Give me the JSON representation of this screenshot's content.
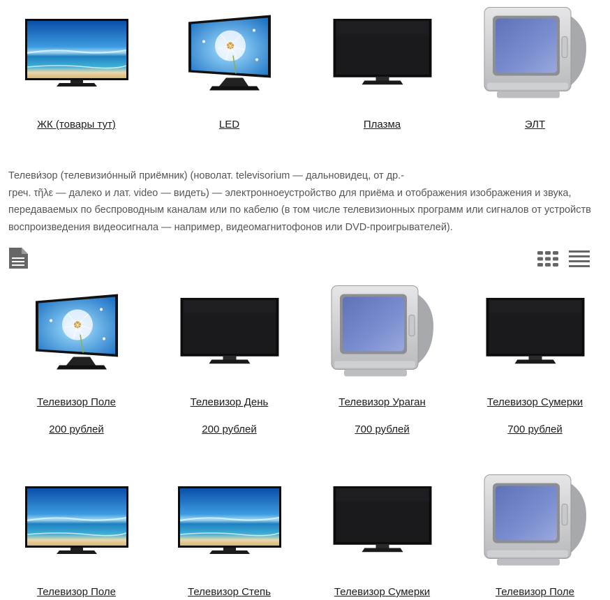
{
  "categories": [
    {
      "label": "ЖК (товары тут)",
      "kind": "beach"
    },
    {
      "label": "LED",
      "kind": "dandelion"
    },
    {
      "label": "Плазма",
      "kind": "black"
    },
    {
      "label": "ЭЛТ",
      "kind": "crt"
    }
  ],
  "description": {
    "lines": [
      "Телеви́зор (телевизио́нный приёмник) (новолат. televisorium — дальновидец, от др.-",
      "греч. τῆλε — далеко и лат. video — видеть) — электронноеустройство для приёма и отображения изображения и звука,",
      "передаваемых по беспроводным каналам или по кабелю (в том числе телевизионных программ или сигналов от устройств",
      "воспроизведения видеосигнала — например, видеомагнитофонов или DVD-проигрывателей)."
    ]
  },
  "toolbar": {
    "doc_icon": "document-icon",
    "grid_icon": "grid-view-icon",
    "list_icon": "list-view-icon"
  },
  "products_row1": [
    {
      "name": "Телевизор Поле",
      "price": "200 рублей",
      "kind": "dandelion"
    },
    {
      "name": "Телевизор День",
      "price": "200 рублей",
      "kind": "black"
    },
    {
      "name": "Телевизор Ураган",
      "price": "700 рублей",
      "kind": "crt"
    },
    {
      "name": "Телевизор Сумерки",
      "price": "700 рублей",
      "kind": "black"
    }
  ],
  "products_row2": [
    {
      "name": "Телевизор Поле",
      "kind": "beach"
    },
    {
      "name": "Телевизор Степь",
      "kind": "beach"
    },
    {
      "name": "Телевизор Сумерки",
      "kind": "black"
    },
    {
      "name": "Телевизор Поле",
      "kind": "crt"
    }
  ],
  "colors": {
    "text": "#1b1b1b",
    "desc": "#555555",
    "icon": "#666666"
  }
}
